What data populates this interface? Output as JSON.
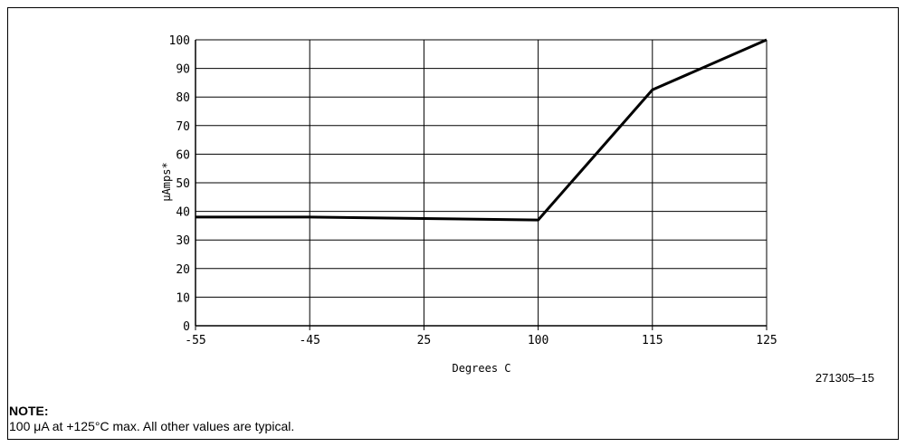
{
  "chart_data": {
    "type": "line",
    "x_ticks": [
      "-55",
      "-45",
      "25",
      "100",
      "115",
      "125"
    ],
    "y_ticks": [
      0,
      10,
      20,
      30,
      40,
      50,
      60,
      70,
      80,
      90,
      100
    ],
    "series": [
      {
        "x": [
          "-55",
          "-45",
          "25",
          "100",
          "115",
          "125"
        ],
        "values": [
          38,
          38,
          37.5,
          37,
          82.5,
          100
        ]
      }
    ],
    "ylim": [
      0,
      100
    ],
    "xlabel": "Degrees C",
    "ylabel": "μAmps*",
    "grid": true,
    "line_color": "#000000"
  },
  "figure_ref": "271305–15",
  "note": {
    "title": "NOTE:",
    "text": "100 μA at +125°C max. All other values are typical."
  }
}
